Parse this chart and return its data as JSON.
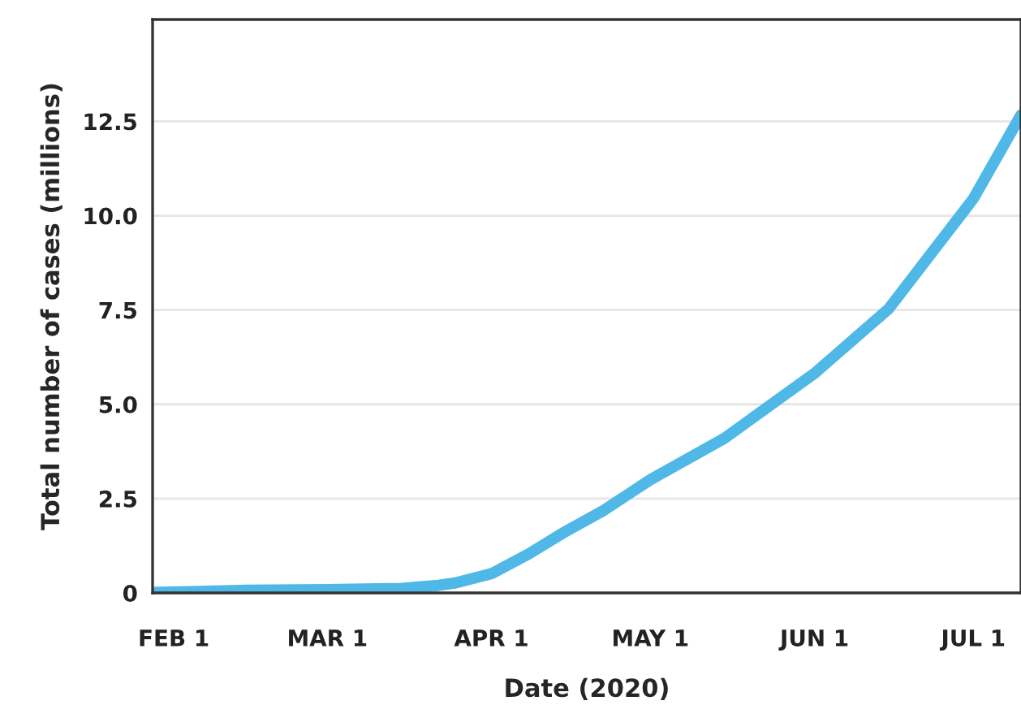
{
  "chart_data": {
    "type": "line",
    "xlabel": "Date (2020)",
    "ylabel": "Total number of cases (millions)",
    "x": [
      "2020-01-28",
      "2020-02-15",
      "2020-03-01",
      "2020-03-15",
      "2020-03-22",
      "2020-03-25",
      "2020-04-01",
      "2020-04-08",
      "2020-04-15",
      "2020-04-22",
      "2020-05-01",
      "2020-05-15",
      "2020-06-01",
      "2020-06-15",
      "2020-07-01",
      "2020-07-10"
    ],
    "series": [
      {
        "color": "#4fb8e6",
        "values": [
          0.01,
          0.07,
          0.09,
          0.12,
          0.2,
          0.26,
          0.51,
          1.03,
          1.63,
          2.17,
          3.0,
          4.1,
          5.82,
          7.53,
          10.45,
          12.67
        ]
      }
    ],
    "xlim": [
      "2020-01-28",
      "2020-07-10"
    ],
    "xticks": [
      {
        "value": "2020-02-01",
        "label": "FEB 1"
      },
      {
        "value": "2020-03-01",
        "label": "MAR 1"
      },
      {
        "value": "2020-04-01",
        "label": "APR 1"
      },
      {
        "value": "2020-05-01",
        "label": "MAY 1"
      },
      {
        "value": "2020-06-01",
        "label": "JUN 1"
      },
      {
        "value": "2020-07-01",
        "label": "JUL 1"
      }
    ],
    "ylim": [
      0,
      15.2
    ],
    "yticks": [
      0,
      2.5,
      {
        "value": 5,
        "label": "5.0"
      },
      7.5,
      {
        "value": 10,
        "label": "10.0"
      },
      12.5
    ],
    "grid": "y",
    "marker": "none",
    "line_style": "solid"
  }
}
